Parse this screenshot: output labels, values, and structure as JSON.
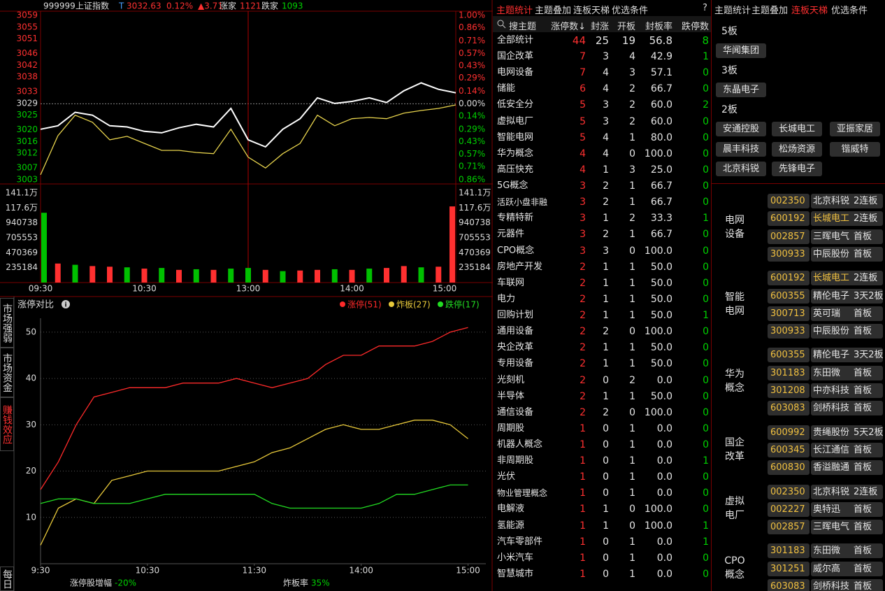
{
  "chart_data": [
    {
      "type": "line",
      "code": "999999",
      "name": "上证指数",
      "flag": "T",
      "price": 3032.63,
      "change_pct": "0.12%",
      "change": "▲3.71",
      "up_label": "涨家",
      "up_count": 1121,
      "down_label": "跌家",
      "down_count": 1093,
      "x": [
        0,
        10,
        20,
        30,
        40,
        50,
        60,
        70,
        80,
        90,
        100,
        110,
        120,
        130,
        140,
        150,
        160,
        170,
        180,
        190,
        200,
        210,
        220,
        230,
        240
      ],
      "xlim": [
        0,
        240
      ],
      "xticks": [
        {
          "value": 0,
          "label": "09:30"
        },
        {
          "value": 60,
          "label": "10:30"
        },
        {
          "value": 120,
          "label": "13:00"
        },
        {
          "value": 180,
          "label": "14:00"
        },
        {
          "value": 240,
          "label": "15:00"
        }
      ],
      "ylim": [
        3003,
        3059
      ],
      "yticks": [
        3059,
        3055,
        3051,
        3046,
        3042,
        3038,
        3033,
        3029,
        3025,
        3020,
        3016,
        3012,
        3007,
        3003
      ],
      "y2lim": [
        -0.86,
        1.0
      ],
      "y2ticks": [
        {
          "value": 1.0,
          "label": "1.00%"
        },
        {
          "value": 0.86,
          "label": "0.86%"
        },
        {
          "value": 0.71,
          "label": "0.71%"
        },
        {
          "value": 0.57,
          "label": "0.57%"
        },
        {
          "value": 0.43,
          "label": "0.43%"
        },
        {
          "value": 0.29,
          "label": "0.29%"
        },
        {
          "value": 0.14,
          "label": "0.14%"
        },
        {
          "value": 0,
          "label": "0.00%"
        },
        {
          "value": -0.14,
          "label": "0.14%"
        },
        {
          "value": -0.29,
          "label": "0.29%"
        },
        {
          "value": -0.43,
          "label": "0.43%"
        },
        {
          "value": -0.57,
          "label": "0.57%"
        },
        {
          "value": -0.71,
          "label": "0.71%"
        },
        {
          "value": -0.86,
          "label": "0.86%"
        }
      ],
      "series": [
        {
          "color": "#ffffff",
          "values": [
            3020.2,
            3021.4,
            3026,
            3025,
            3021.4,
            3021,
            3019.5,
            3019,
            3020.7,
            3021.9,
            3021,
            3027.3,
            3016.6,
            3014.2,
            3020.2,
            3023.8,
            3030.9,
            3029,
            3029.7,
            3030.9,
            3029.3,
            3033.3,
            3036,
            3033.8,
            3032.63
          ]
        },
        {
          "color": "#e8d44d",
          "values": [
            3004.7,
            3018,
            3025,
            3022.6,
            3016.6,
            3017.8,
            3015.4,
            3013,
            3013,
            3012.3,
            3011.9,
            3020.2,
            3010.7,
            3007,
            3011.9,
            3015.4,
            3025,
            3021.4,
            3023.8,
            3024.2,
            3023.8,
            3025.7,
            3026.6,
            3027.3,
            3028.5
          ]
        }
      ],
      "volume": {
        "ylim": [
          0,
          1411000
        ],
        "yticks": [
          {
            "value": 1411000,
            "label": "141.1万"
          },
          {
            "value": 1176000,
            "label": "117.6万"
          },
          940738,
          705553,
          470369,
          235184
        ],
        "values": [
          1100000,
          300000,
          280000,
          260000,
          250000,
          240000,
          220000,
          230000,
          200000,
          210000,
          200000,
          220000,
          230000,
          200000,
          180000,
          190000,
          200000,
          210000,
          200000,
          220000,
          230000,
          260000,
          240000,
          250000,
          1200000
        ],
        "colors": [
          "#00c000",
          "#ff3030",
          "#00c000",
          "#ff3030",
          "#ff3030",
          "#00c000",
          "#ff3030",
          "#00c000",
          "#ff3030",
          "#00c000",
          "#ff3030",
          "#00c000",
          "#00c000",
          "#ff3030",
          "#00c000",
          "#ff3030",
          "#ff3030",
          "#00c000",
          "#ff3030",
          "#00c000",
          "#ff3030",
          "#ff3030",
          "#00c000",
          "#ff3030",
          "#ff3030"
        ]
      }
    },
    {
      "type": "line",
      "title": "涨停对比",
      "x": [
        0,
        10,
        20,
        30,
        40,
        50,
        60,
        70,
        80,
        90,
        100,
        110,
        120,
        130,
        140,
        150,
        160,
        170,
        180,
        190,
        200,
        210,
        220,
        230,
        240
      ],
      "xlim": [
        0,
        250
      ],
      "xticks": [
        {
          "value": 0,
          "label": "9:30"
        },
        {
          "value": 60,
          "label": "10:30"
        },
        {
          "value": 120,
          "label": "11:30"
        },
        {
          "value": 180,
          "label": "14:00"
        },
        {
          "value": 240,
          "label": "15:00"
        }
      ],
      "ylim": [
        0,
        53
      ],
      "yticks": [
        10,
        20,
        30,
        40,
        50
      ],
      "grid": true,
      "series": [
        {
          "name": "涨停(51)",
          "color": "#ff2a2a",
          "values": [
            16,
            22,
            30,
            36,
            37,
            38,
            38,
            38,
            39,
            39,
            39,
            40,
            39,
            38,
            39,
            40,
            43,
            45,
            45,
            47,
            47,
            47,
            48,
            50,
            51
          ]
        },
        {
          "name": "炸板(27)",
          "color": "#e8c93a",
          "values": [
            4,
            12,
            14,
            13,
            18,
            19,
            20,
            20,
            20,
            20,
            20,
            21,
            22,
            24,
            25,
            27,
            29,
            30,
            29,
            29,
            30,
            31,
            31,
            30,
            27
          ]
        },
        {
          "name": "跌停(17)",
          "color": "#22dd22",
          "values": [
            13,
            14,
            14,
            13,
            13,
            13,
            14,
            15,
            15,
            15,
            15,
            15,
            15,
            13,
            12,
            12,
            12,
            12,
            12,
            13,
            15,
            15,
            16,
            17,
            17
          ]
        }
      ],
      "footer": [
        {
          "label": "涨停股增幅",
          "value": "-20%"
        },
        {
          "label": "炸板率",
          "value": "35%"
        }
      ]
    }
  ],
  "side_tabs": {
    "items": [
      "市场强弱",
      "市场资金",
      "赚钱效应",
      "每日"
    ],
    "active": 2
  },
  "table": {
    "tabs": [
      "主题统计",
      "主题叠加",
      "连板天梯",
      "优选条件"
    ],
    "active_tab": 0,
    "help": "?",
    "search": "搜主题",
    "columns": [
      "涨停数↓",
      "封涨",
      "开板",
      "封板率",
      "跌停数"
    ],
    "rows": [
      [
        "全部统计",
        "44",
        "25",
        "19",
        "56.8",
        "8"
      ],
      [
        "国企改革",
        "7",
        "3",
        "4",
        "42.9",
        "1"
      ],
      [
        "电网设备",
        "7",
        "4",
        "3",
        "57.1",
        "0"
      ],
      [
        "储能",
        "6",
        "4",
        "2",
        "66.7",
        "0"
      ],
      [
        "低安全分",
        "5",
        "3",
        "2",
        "60.0",
        "2"
      ],
      [
        "虚拟电厂",
        "5",
        "3",
        "2",
        "60.0",
        "0"
      ],
      [
        "智能电网",
        "5",
        "4",
        "1",
        "80.0",
        "0"
      ],
      [
        "华为概念",
        "4",
        "4",
        "0",
        "100.0",
        "0"
      ],
      [
        "高压快充",
        "4",
        "1",
        "3",
        "25.0",
        "0"
      ],
      [
        "5G概念",
        "3",
        "2",
        "1",
        "66.7",
        "0"
      ],
      [
        "活跃小盘非融",
        "3",
        "2",
        "1",
        "66.7",
        "0"
      ],
      [
        "专精特新",
        "3",
        "1",
        "2",
        "33.3",
        "1"
      ],
      [
        "元器件",
        "3",
        "2",
        "1",
        "66.7",
        "0"
      ],
      [
        "CPO概念",
        "3",
        "3",
        "0",
        "100.0",
        "0"
      ],
      [
        "房地产开发",
        "2",
        "1",
        "1",
        "50.0",
        "0"
      ],
      [
        "车联网",
        "2",
        "1",
        "1",
        "50.0",
        "0"
      ],
      [
        "电力",
        "2",
        "1",
        "1",
        "50.0",
        "0"
      ],
      [
        "回购计划",
        "2",
        "1",
        "1",
        "50.0",
        "1"
      ],
      [
        "通用设备",
        "2",
        "2",
        "0",
        "100.0",
        "0"
      ],
      [
        "央企改革",
        "2",
        "1",
        "1",
        "50.0",
        "0"
      ],
      [
        "专用设备",
        "2",
        "1",
        "1",
        "50.0",
        "0"
      ],
      [
        "光刻机",
        "2",
        "0",
        "2",
        "0.0",
        "0"
      ],
      [
        "半导体",
        "2",
        "1",
        "1",
        "50.0",
        "0"
      ],
      [
        "通信设备",
        "2",
        "2",
        "0",
        "100.0",
        "0"
      ],
      [
        "周期股",
        "1",
        "0",
        "1",
        "0.0",
        "0"
      ],
      [
        "机器人概念",
        "1",
        "0",
        "1",
        "0.0",
        "0"
      ],
      [
        "非周期股",
        "1",
        "0",
        "1",
        "0.0",
        "1"
      ],
      [
        "光伏",
        "1",
        "0",
        "1",
        "0.0",
        "0"
      ],
      [
        "物业管理概念",
        "1",
        "0",
        "1",
        "0.0",
        "0"
      ],
      [
        "电解液",
        "1",
        "1",
        "0",
        "100.0",
        "0"
      ],
      [
        "氢能源",
        "1",
        "1",
        "0",
        "100.0",
        "1"
      ],
      [
        "汽车零部件",
        "1",
        "0",
        "1",
        "0.0",
        "1"
      ],
      [
        "小米汽车",
        "1",
        "0",
        "1",
        "0.0",
        "0"
      ],
      [
        "智慧城市",
        "1",
        "0",
        "1",
        "0.0",
        "0"
      ]
    ]
  },
  "ladder": {
    "tabs": [
      "主题统计",
      "主题叠加",
      "连板天梯",
      "优选条件"
    ],
    "active_tab": 2,
    "levels": [
      {
        "label": "5板",
        "stocks": [
          "华闻集团"
        ]
      },
      {
        "label": "3板",
        "stocks": [
          "东晶电子"
        ]
      },
      {
        "label": "2板",
        "stocks": [
          "安通控股",
          "长城电工",
          "亚振家居",
          "晨丰科技",
          "松炀资源",
          "锴威特",
          "北京科锐",
          "先锋电子"
        ]
      }
    ]
  },
  "sectors": [
    {
      "name": "电网设备",
      "stocks": [
        {
          "code": "002350",
          "name": "北京科锐",
          "tag": "2连板"
        },
        {
          "code": "600192",
          "name": "长城电工",
          "tag": "2连板",
          "highlight": true
        },
        {
          "code": "002857",
          "name": "三晖电气",
          "tag": "首板"
        },
        {
          "code": "300933",
          "name": "中辰股份",
          "tag": "首板"
        }
      ]
    },
    {
      "name": "智能电网",
      "stocks": [
        {
          "code": "600192",
          "name": "长城电工",
          "tag": "2连板",
          "highlight": true
        },
        {
          "code": "600355",
          "name": "精伦电子",
          "tag": "3天2板"
        },
        {
          "code": "300713",
          "name": "英可瑞",
          "tag": "首板"
        },
        {
          "code": "300933",
          "name": "中辰股份",
          "tag": "首板"
        }
      ]
    },
    {
      "name": "华为概念",
      "stocks": [
        {
          "code": "600355",
          "name": "精伦电子",
          "tag": "3天2板"
        },
        {
          "code": "301183",
          "name": "东田微",
          "tag": "首板"
        },
        {
          "code": "301208",
          "name": "中亦科技",
          "tag": "首板"
        },
        {
          "code": "603083",
          "name": "剑桥科技",
          "tag": "首板"
        }
      ]
    },
    {
      "name": "国企改革",
      "stocks": [
        {
          "code": "600992",
          "name": "贵绳股份",
          "tag": "5天2板"
        },
        {
          "code": "600345",
          "name": "长江通信",
          "tag": "首板"
        },
        {
          "code": "600830",
          "name": "香溢融通",
          "tag": "首板"
        }
      ]
    },
    {
      "name": "虚拟电厂",
      "stocks": [
        {
          "code": "002350",
          "name": "北京科锐",
          "tag": "2连板"
        },
        {
          "code": "002227",
          "name": "奥特迅",
          "tag": "首板"
        },
        {
          "code": "002857",
          "name": "三晖电气",
          "tag": "首板"
        }
      ]
    },
    {
      "name": "CPO概念",
      "stocks": [
        {
          "code": "301183",
          "name": "东田微",
          "tag": "首板"
        },
        {
          "code": "301251",
          "name": "威尔高",
          "tag": "首板"
        },
        {
          "code": "603083",
          "name": "剑桥科技",
          "tag": "首板"
        }
      ]
    }
  ]
}
